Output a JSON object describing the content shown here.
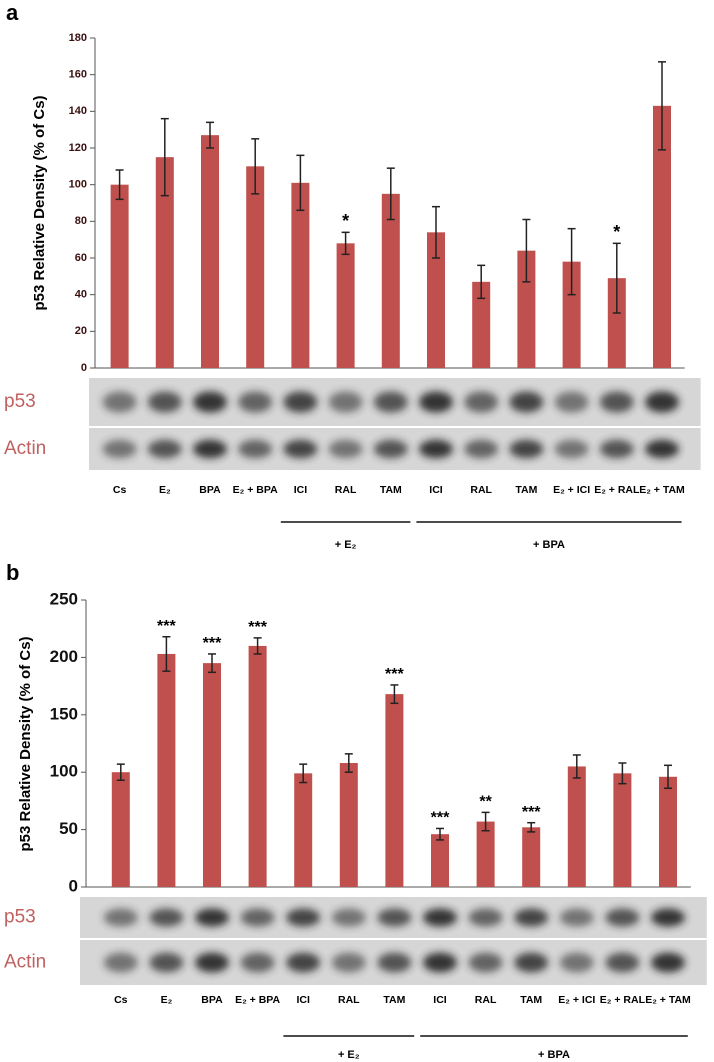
{
  "chart_data": [
    {
      "type": "bar",
      "panel": "a",
      "ylabel": "p53 Relative Density (% of Cs)",
      "categories": [
        "Cs",
        "E₂",
        "BPA",
        "E₂ + BPA",
        "ICI",
        "RAL",
        "TAM",
        "ICI",
        "RAL",
        "TAM",
        "E₂ + ICI",
        "E₂ + RAL",
        "E₂ + TAM"
      ],
      "series": [
        {
          "name": "p53",
          "color": "#c0504d",
          "values": [
            100,
            115,
            127,
            110,
            101,
            68,
            95,
            74,
            47,
            64,
            58,
            49,
            143
          ],
          "errors": [
            8,
            21,
            7,
            15,
            15,
            6,
            14,
            14,
            9,
            17,
            18,
            19,
            24
          ]
        }
      ],
      "significance": [
        null,
        null,
        null,
        null,
        null,
        "*",
        null,
        null,
        null,
        null,
        null,
        "*",
        null
      ],
      "ylim": [
        0,
        180
      ],
      "yticks": [
        0,
        20,
        40,
        60,
        80,
        100,
        120,
        140,
        160,
        180
      ],
      "blots": [
        "p53",
        "Actin"
      ],
      "groups": [
        "+ E₂",
        "+ BPA"
      ]
    },
    {
      "type": "bar",
      "panel": "b",
      "ylabel": "p53 Relative Density (% of Cs)",
      "categories": [
        "Cs",
        "E₂",
        "BPA",
        "E₂ + BPA",
        "ICI",
        "RAL",
        "TAM",
        "ICI",
        "RAL",
        "TAM",
        "E₂ + ICI",
        "E₂ + RAL",
        "E₂ + TAM"
      ],
      "series": [
        {
          "name": "p53",
          "color": "#c0504d",
          "values": [
            100,
            203,
            195,
            210,
            99,
            108,
            168,
            46,
            57,
            52,
            105,
            99,
            96
          ],
          "errors": [
            7,
            15,
            8,
            7,
            8,
            8,
            8,
            5,
            8,
            4,
            10,
            9,
            10
          ]
        }
      ],
      "significance": [
        null,
        "***",
        "***",
        "***",
        null,
        null,
        "***",
        "***",
        "**",
        "***",
        null,
        null,
        null
      ],
      "ylim": [
        0,
        250
      ],
      "yticks": [
        0,
        50,
        100,
        150,
        200,
        250
      ],
      "blots": [
        "p53",
        "Actin"
      ],
      "groups": [
        "+ E₂",
        "+ BPA"
      ]
    }
  ]
}
